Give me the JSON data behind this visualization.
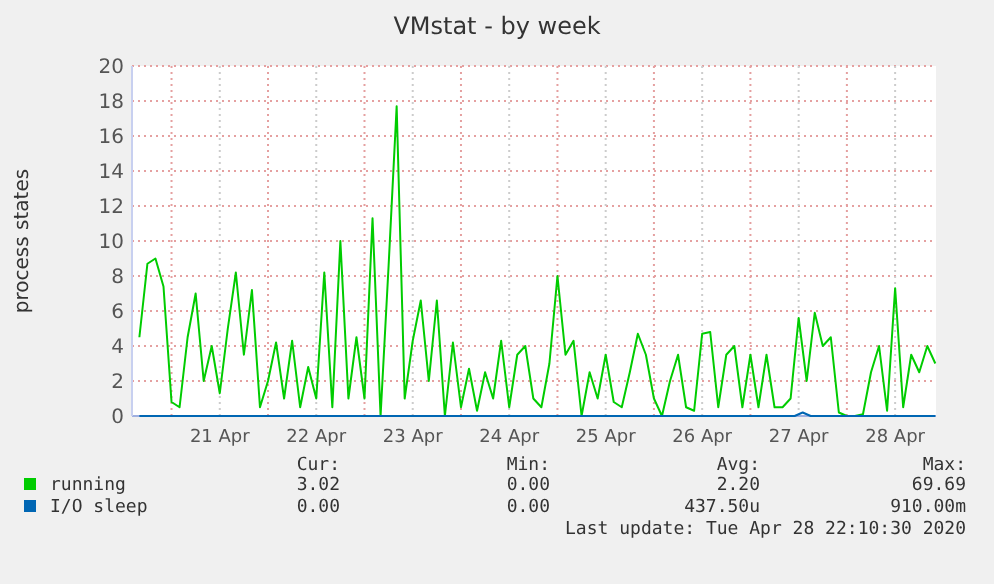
{
  "chart_data": {
    "type": "line",
    "title": "VMstat - by week",
    "ylabel": "process states",
    "xlim": [
      "2020-04-20T14:10",
      "2020-04-28T22:10"
    ],
    "xticks": [
      {
        "value": "2020-04-21T00:00",
        "label": null
      },
      {
        "value": "2020-04-21T12:00",
        "label": "21 Apr"
      },
      {
        "value": "2020-04-22T00:00",
        "label": null
      },
      {
        "value": "2020-04-22T12:00",
        "label": "22 Apr"
      },
      {
        "value": "2020-04-23T00:00",
        "label": null
      },
      {
        "value": "2020-04-23T12:00",
        "label": "23 Apr"
      },
      {
        "value": "2020-04-24T00:00",
        "label": null
      },
      {
        "value": "2020-04-24T12:00",
        "label": "24 Apr"
      },
      {
        "value": "2020-04-25T00:00",
        "label": null
      },
      {
        "value": "2020-04-25T12:00",
        "label": "25 Apr"
      },
      {
        "value": "2020-04-26T00:00",
        "label": null
      },
      {
        "value": "2020-04-26T12:00",
        "label": "26 Apr"
      },
      {
        "value": "2020-04-27T00:00",
        "label": null
      },
      {
        "value": "2020-04-27T12:00",
        "label": "27 Apr"
      },
      {
        "value": "2020-04-28T00:00",
        "label": null
      },
      {
        "value": "2020-04-28T12:00",
        "label": "28 Apr"
      }
    ],
    "ylim": [
      0,
      20
    ],
    "yticks": [
      0,
      2,
      4,
      6,
      8,
      10,
      12,
      14,
      16,
      18,
      20
    ],
    "grid": true,
    "legend": "bottom",
    "series": [
      {
        "name": "running",
        "color": "#00cc00",
        "x": [
          "2020-04-20T16:00",
          "2020-04-20T18:00",
          "2020-04-20T20:00",
          "2020-04-20T22:00",
          "2020-04-21T00:00",
          "2020-04-21T02:00",
          "2020-04-21T04:00",
          "2020-04-21T06:00",
          "2020-04-21T08:00",
          "2020-04-21T10:00",
          "2020-04-21T12:00",
          "2020-04-21T14:00",
          "2020-04-21T16:00",
          "2020-04-21T18:00",
          "2020-04-21T20:00",
          "2020-04-21T22:00",
          "2020-04-22T00:00",
          "2020-04-22T02:00",
          "2020-04-22T04:00",
          "2020-04-22T06:00",
          "2020-04-22T08:00",
          "2020-04-22T10:00",
          "2020-04-22T12:00",
          "2020-04-22T14:00",
          "2020-04-22T16:00",
          "2020-04-22T18:00",
          "2020-04-22T20:00",
          "2020-04-22T22:00",
          "2020-04-23T00:00",
          "2020-04-23T02:00",
          "2020-04-23T04:00",
          "2020-04-23T06:00",
          "2020-04-23T08:00",
          "2020-04-23T10:00",
          "2020-04-23T12:00",
          "2020-04-23T14:00",
          "2020-04-23T16:00",
          "2020-04-23T18:00",
          "2020-04-23T20:00",
          "2020-04-23T22:00",
          "2020-04-24T00:00",
          "2020-04-24T02:00",
          "2020-04-24T04:00",
          "2020-04-24T06:00",
          "2020-04-24T08:00",
          "2020-04-24T10:00",
          "2020-04-24T12:00",
          "2020-04-24T14:00",
          "2020-04-24T16:00",
          "2020-04-24T18:00",
          "2020-04-24T20:00",
          "2020-04-24T22:00",
          "2020-04-25T00:00",
          "2020-04-25T02:00",
          "2020-04-25T04:00",
          "2020-04-25T06:00",
          "2020-04-25T08:00",
          "2020-04-25T10:00",
          "2020-04-25T12:00",
          "2020-04-25T14:00",
          "2020-04-25T16:00",
          "2020-04-25T18:00",
          "2020-04-25T20:00",
          "2020-04-25T22:00",
          "2020-04-26T00:00",
          "2020-04-26T02:00",
          "2020-04-26T04:00",
          "2020-04-26T06:00",
          "2020-04-26T08:00",
          "2020-04-26T10:00",
          "2020-04-26T12:00",
          "2020-04-26T14:00",
          "2020-04-26T16:00",
          "2020-04-26T18:00",
          "2020-04-26T20:00",
          "2020-04-26T22:00",
          "2020-04-27T00:00",
          "2020-04-27T02:00",
          "2020-04-27T04:00",
          "2020-04-27T06:00",
          "2020-04-27T08:00",
          "2020-04-27T10:00",
          "2020-04-27T12:00",
          "2020-04-27T14:00",
          "2020-04-27T16:00",
          "2020-04-27T18:00",
          "2020-04-27T20:00",
          "2020-04-27T22:00",
          "2020-04-28T00:00",
          "2020-04-28T02:00",
          "2020-04-28T04:00",
          "2020-04-28T06:00",
          "2020-04-28T08:00",
          "2020-04-28T10:00",
          "2020-04-28T12:00",
          "2020-04-28T14:00",
          "2020-04-28T16:00",
          "2020-04-28T18:00",
          "2020-04-28T20:00",
          "2020-04-28T22:00"
        ],
        "values": [
          4.5,
          8.7,
          9,
          7.4,
          0.8,
          0.5,
          4.5,
          7,
          2,
          4,
          1.3,
          5,
          8.2,
          3.5,
          7.2,
          0.5,
          2,
          4.2,
          1,
          4.3,
          0.5,
          2.8,
          1,
          8.2,
          0.5,
          10,
          1,
          4.5,
          1,
          11.3,
          0,
          8.6,
          17.7,
          1,
          4.3,
          6.6,
          2,
          6.6,
          0,
          4.2,
          0.5,
          2.7,
          0.3,
          2.5,
          1,
          4.3,
          0.5,
          3.5,
          4,
          1,
          0.5,
          3,
          8,
          3.5,
          4.3,
          0,
          2.5,
          1,
          3.5,
          0.8,
          0.5,
          2.5,
          4.7,
          3.5,
          1,
          0,
          2,
          3.5,
          0.5,
          0.3,
          4.7,
          4.8,
          0.5,
          3.5,
          4,
          0.5,
          3.5,
          0.5,
          3.5,
          0.5,
          0.5,
          1,
          5.6,
          2,
          5.9,
          4,
          4.5,
          0.2,
          0,
          0,
          0.1,
          2.5,
          4,
          0.3,
          7.3,
          0.5,
          3.5,
          2.5,
          4,
          3
        ]
      },
      {
        "name": "I/O sleep",
        "color": "#0066b3",
        "x": [
          "2020-04-20T16:00",
          "2020-04-27T11:00",
          "2020-04-27T13:00",
          "2020-04-27T15:00",
          "2020-04-28T22:00"
        ],
        "values": [
          0,
          0,
          0.2,
          0,
          0
        ]
      }
    ],
    "annotations": [
      "Cur:",
      "Min:",
      "Avg:",
      "Max:",
      "3.02",
      "0.00",
      "2.20",
      "69.69",
      "0.00",
      "0.00",
      "437.50u",
      "910.00m",
      "Last update: Tue Apr 28 22:10:30 2020"
    ]
  }
}
